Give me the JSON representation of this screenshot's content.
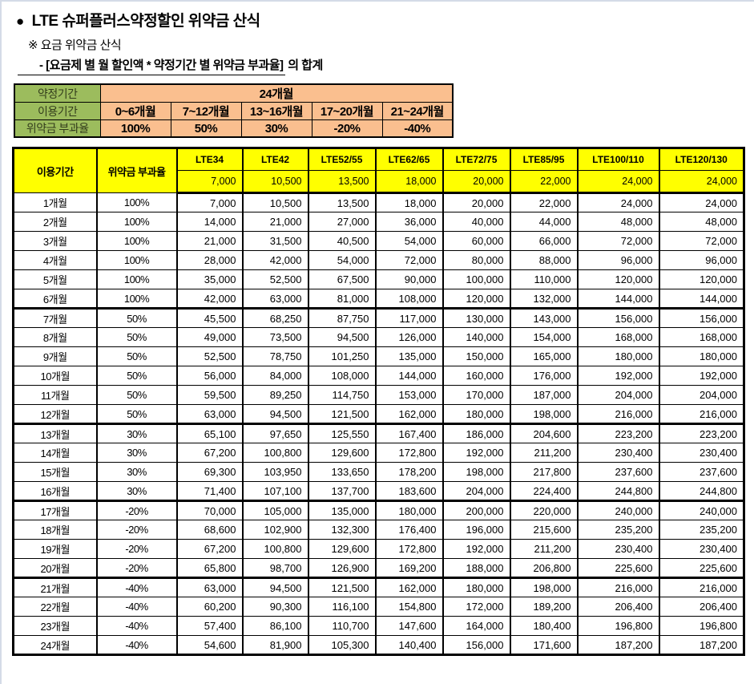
{
  "header": {
    "bullet": "●",
    "title": "LTE 슈퍼플러스약정할인 위약금 산식",
    "subtitle": "※ 요금 위약금 산식",
    "formula_underlined": "- [요금제 별 월 할인액 * 약정기간 별 위약금 부과율]",
    "formula_suffix": " 의 합계"
  },
  "rate_table": {
    "contract_period_label": "약정기간",
    "contract_period_value": "24개월",
    "usage_period_label": "이용기간",
    "usage_periods": [
      "0~6개월",
      "7~12개월",
      "13~16개월",
      "17~20개월",
      "21~24개월"
    ],
    "penalty_rate_label": "위약금 부과율",
    "penalty_rates": [
      "100%",
      "50%",
      "30%",
      "-20%",
      "-40%"
    ]
  },
  "penalty_table": {
    "col_usage_period": "이용기간",
    "col_penalty_rate": "위약금 부과율",
    "plans": [
      "LTE34",
      "LTE42",
      "LTE52/55",
      "LTE62/65",
      "LTE72/75",
      "LTE85/95",
      "LTE100/110",
      "LTE120/130"
    ],
    "monthly_discounts": [
      "7,000",
      "10,500",
      "13,500",
      "18,000",
      "20,000",
      "22,000",
      "24,000",
      "24,000"
    ],
    "rows": [
      {
        "month": "1개월",
        "rate": "100%",
        "values": [
          "7,000",
          "10,500",
          "13,500",
          "18,000",
          "20,000",
          "22,000",
          "24,000",
          "24,000"
        ],
        "group_end": false
      },
      {
        "month": "2개월",
        "rate": "100%",
        "values": [
          "14,000",
          "21,000",
          "27,000",
          "36,000",
          "40,000",
          "44,000",
          "48,000",
          "48,000"
        ],
        "group_end": false
      },
      {
        "month": "3개월",
        "rate": "100%",
        "values": [
          "21,000",
          "31,500",
          "40,500",
          "54,000",
          "60,000",
          "66,000",
          "72,000",
          "72,000"
        ],
        "group_end": false
      },
      {
        "month": "4개월",
        "rate": "100%",
        "values": [
          "28,000",
          "42,000",
          "54,000",
          "72,000",
          "80,000",
          "88,000",
          "96,000",
          "96,000"
        ],
        "group_end": false
      },
      {
        "month": "5개월",
        "rate": "100%",
        "values": [
          "35,000",
          "52,500",
          "67,500",
          "90,000",
          "100,000",
          "110,000",
          "120,000",
          "120,000"
        ],
        "group_end": false
      },
      {
        "month": "6개월",
        "rate": "100%",
        "values": [
          "42,000",
          "63,000",
          "81,000",
          "108,000",
          "120,000",
          "132,000",
          "144,000",
          "144,000"
        ],
        "group_end": true
      },
      {
        "month": "7개월",
        "rate": "50%",
        "values": [
          "45,500",
          "68,250",
          "87,750",
          "117,000",
          "130,000",
          "143,000",
          "156,000",
          "156,000"
        ],
        "group_end": false
      },
      {
        "month": "8개월",
        "rate": "50%",
        "values": [
          "49,000",
          "73,500",
          "94,500",
          "126,000",
          "140,000",
          "154,000",
          "168,000",
          "168,000"
        ],
        "group_end": false
      },
      {
        "month": "9개월",
        "rate": "50%",
        "values": [
          "52,500",
          "78,750",
          "101,250",
          "135,000",
          "150,000",
          "165,000",
          "180,000",
          "180,000"
        ],
        "group_end": false
      },
      {
        "month": "10개월",
        "rate": "50%",
        "values": [
          "56,000",
          "84,000",
          "108,000",
          "144,000",
          "160,000",
          "176,000",
          "192,000",
          "192,000"
        ],
        "group_end": false
      },
      {
        "month": "11개월",
        "rate": "50%",
        "values": [
          "59,500",
          "89,250",
          "114,750",
          "153,000",
          "170,000",
          "187,000",
          "204,000",
          "204,000"
        ],
        "group_end": false
      },
      {
        "month": "12개월",
        "rate": "50%",
        "values": [
          "63,000",
          "94,500",
          "121,500",
          "162,000",
          "180,000",
          "198,000",
          "216,000",
          "216,000"
        ],
        "group_end": true
      },
      {
        "month": "13개월",
        "rate": "30%",
        "values": [
          "65,100",
          "97,650",
          "125,550",
          "167,400",
          "186,000",
          "204,600",
          "223,200",
          "223,200"
        ],
        "group_end": false
      },
      {
        "month": "14개월",
        "rate": "30%",
        "values": [
          "67,200",
          "100,800",
          "129,600",
          "172,800",
          "192,000",
          "211,200",
          "230,400",
          "230,400"
        ],
        "group_end": false
      },
      {
        "month": "15개월",
        "rate": "30%",
        "values": [
          "69,300",
          "103,950",
          "133,650",
          "178,200",
          "198,000",
          "217,800",
          "237,600",
          "237,600"
        ],
        "group_end": false
      },
      {
        "month": "16개월",
        "rate": "30%",
        "values": [
          "71,400",
          "107,100",
          "137,700",
          "183,600",
          "204,000",
          "224,400",
          "244,800",
          "244,800"
        ],
        "group_end": true
      },
      {
        "month": "17개월",
        "rate": "-20%",
        "values": [
          "70,000",
          "105,000",
          "135,000",
          "180,000",
          "200,000",
          "220,000",
          "240,000",
          "240,000"
        ],
        "group_end": false
      },
      {
        "month": "18개월",
        "rate": "-20%",
        "values": [
          "68,600",
          "102,900",
          "132,300",
          "176,400",
          "196,000",
          "215,600",
          "235,200",
          "235,200"
        ],
        "group_end": false
      },
      {
        "month": "19개월",
        "rate": "-20%",
        "values": [
          "67,200",
          "100,800",
          "129,600",
          "172,800",
          "192,000",
          "211,200",
          "230,400",
          "230,400"
        ],
        "group_end": false
      },
      {
        "month": "20개월",
        "rate": "-20%",
        "values": [
          "65,800",
          "98,700",
          "126,900",
          "169,200",
          "188,000",
          "206,800",
          "225,600",
          "225,600"
        ],
        "group_end": true
      },
      {
        "month": "21개월",
        "rate": "-40%",
        "values": [
          "63,000",
          "94,500",
          "121,500",
          "162,000",
          "180,000",
          "198,000",
          "216,000",
          "216,000"
        ],
        "group_end": false
      },
      {
        "month": "22개월",
        "rate": "-40%",
        "values": [
          "60,200",
          "90,300",
          "116,100",
          "154,800",
          "172,000",
          "189,200",
          "206,400",
          "206,400"
        ],
        "group_end": false
      },
      {
        "month": "23개월",
        "rate": "-40%",
        "values": [
          "57,400",
          "86,100",
          "110,700",
          "147,600",
          "164,000",
          "180,400",
          "196,800",
          "196,800"
        ],
        "group_end": false
      },
      {
        "month": "24개월",
        "rate": "-40%",
        "values": [
          "54,600",
          "81,900",
          "105,300",
          "140,400",
          "156,000",
          "171,600",
          "187,200",
          "187,200"
        ],
        "group_end": true
      }
    ]
  },
  "colors": {
    "header_yellow": "#FFFF00",
    "label_green": "#9CBC5D",
    "band_peach": "#FABF8F",
    "border_black": "#000000"
  }
}
